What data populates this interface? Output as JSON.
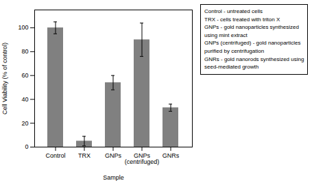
{
  "chart_data": {
    "type": "bar",
    "categories": [
      "Control",
      "TRX",
      "GNPs",
      "GNPs\n(centrifuged)",
      "GNRs"
    ],
    "values": [
      100,
      5,
      54,
      90,
      33
    ],
    "errors": [
      5,
      4,
      6,
      14,
      3
    ],
    "color": "#808080",
    "xlabel": "Sample",
    "ylabel": "Cell Viability (% of control)",
    "ylim": [
      0,
      115
    ],
    "yticks": [
      0,
      20,
      40,
      60,
      80,
      100
    ],
    "grid": false,
    "annotations": [
      "Control - untreated cells\nTRX - cells treated with triton X\nGNPs - gold nanoparticles synthesized\nusing mint extract\nGNPs (centrifuged) - gold nanoparticles\npurified by centrifugation\nGNRs - gold nanorods synthesized using\nseed-mediated growth"
    ]
  }
}
